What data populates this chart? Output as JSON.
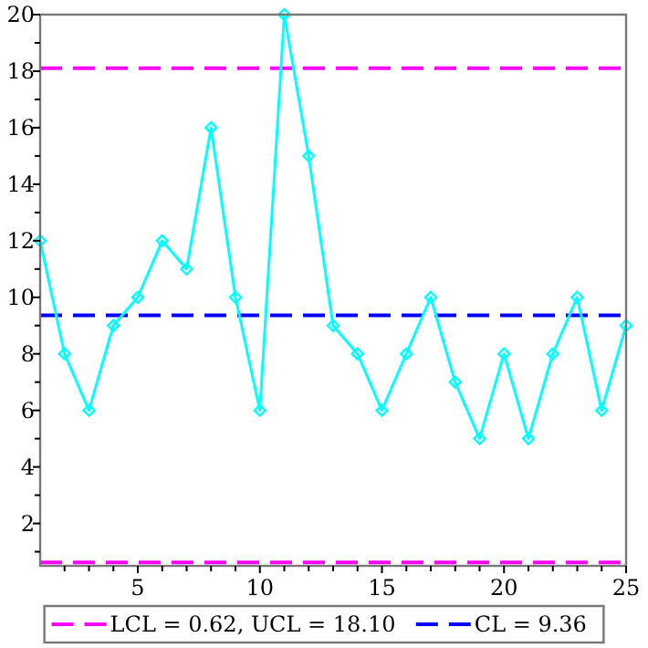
{
  "chart_data": {
    "type": "line",
    "x": [
      1,
      2,
      3,
      4,
      5,
      6,
      7,
      8,
      9,
      10,
      11,
      12,
      13,
      14,
      15,
      16,
      17,
      18,
      19,
      20,
      21,
      22,
      23,
      24,
      25
    ],
    "series": [
      {
        "color": "#00ffff",
        "values": [
          12,
          8,
          6,
          9,
          10,
          12,
          11,
          16,
          10,
          6,
          20,
          15,
          9,
          8,
          6,
          8,
          10,
          7,
          5,
          8,
          5,
          8,
          10,
          6,
          9
        ]
      }
    ],
    "marker": "diamond",
    "line_style": "solid",
    "xlim": [
      1,
      25
    ],
    "ylim": [
      0.5,
      20
    ],
    "xticks": [
      {
        "value": 2,
        "label": null
      },
      {
        "value": 3,
        "label": null
      },
      {
        "value": 4,
        "label": null
      },
      5,
      {
        "value": 6,
        "label": null
      },
      {
        "value": 7,
        "label": null
      },
      {
        "value": 8,
        "label": null
      },
      {
        "value": 9,
        "label": null
      },
      10,
      {
        "value": 11,
        "label": null
      },
      {
        "value": 12,
        "label": null
      },
      {
        "value": 13,
        "label": null
      },
      {
        "value": 14,
        "label": null
      },
      15,
      {
        "value": 16,
        "label": null
      },
      {
        "value": 17,
        "label": null
      },
      {
        "value": 18,
        "label": null
      },
      {
        "value": 19,
        "label": null
      },
      20,
      {
        "value": 21,
        "label": null
      },
      {
        "value": 22,
        "label": null
      },
      {
        "value": 23,
        "label": null
      },
      {
        "value": 24,
        "label": null
      },
      25
    ],
    "yticks": [
      {
        "value": 1,
        "label": null
      },
      2,
      {
        "value": 3,
        "label": null
      },
      4,
      {
        "value": 5,
        "label": null
      },
      6,
      {
        "value": 7,
        "label": null
      },
      8,
      {
        "value": 9,
        "label": null
      },
      10,
      {
        "value": 11,
        "label": null
      },
      12,
      {
        "value": 13,
        "label": null
      },
      14,
      {
        "value": 15,
        "label": null
      },
      16,
      {
        "value": 17,
        "label": null
      },
      18,
      {
        "value": 19,
        "label": null
      },
      20
    ],
    "ref_lines": [
      {
        "axis": "y",
        "value": 0.62,
        "label": "LCL = 0.62, UCL = 18.10",
        "color": "#ff00ff",
        "line_style": "dashed"
      },
      {
        "axis": "y",
        "value": 18.1,
        "label": null,
        "color": "#ff00ff",
        "line_style": "dashed"
      },
      {
        "axis": "y",
        "value": 9.36,
        "label": "CL = 9.36",
        "color": "#0000ff",
        "line_style": "dashed"
      }
    ],
    "legend": "bottom",
    "grid": false
  }
}
